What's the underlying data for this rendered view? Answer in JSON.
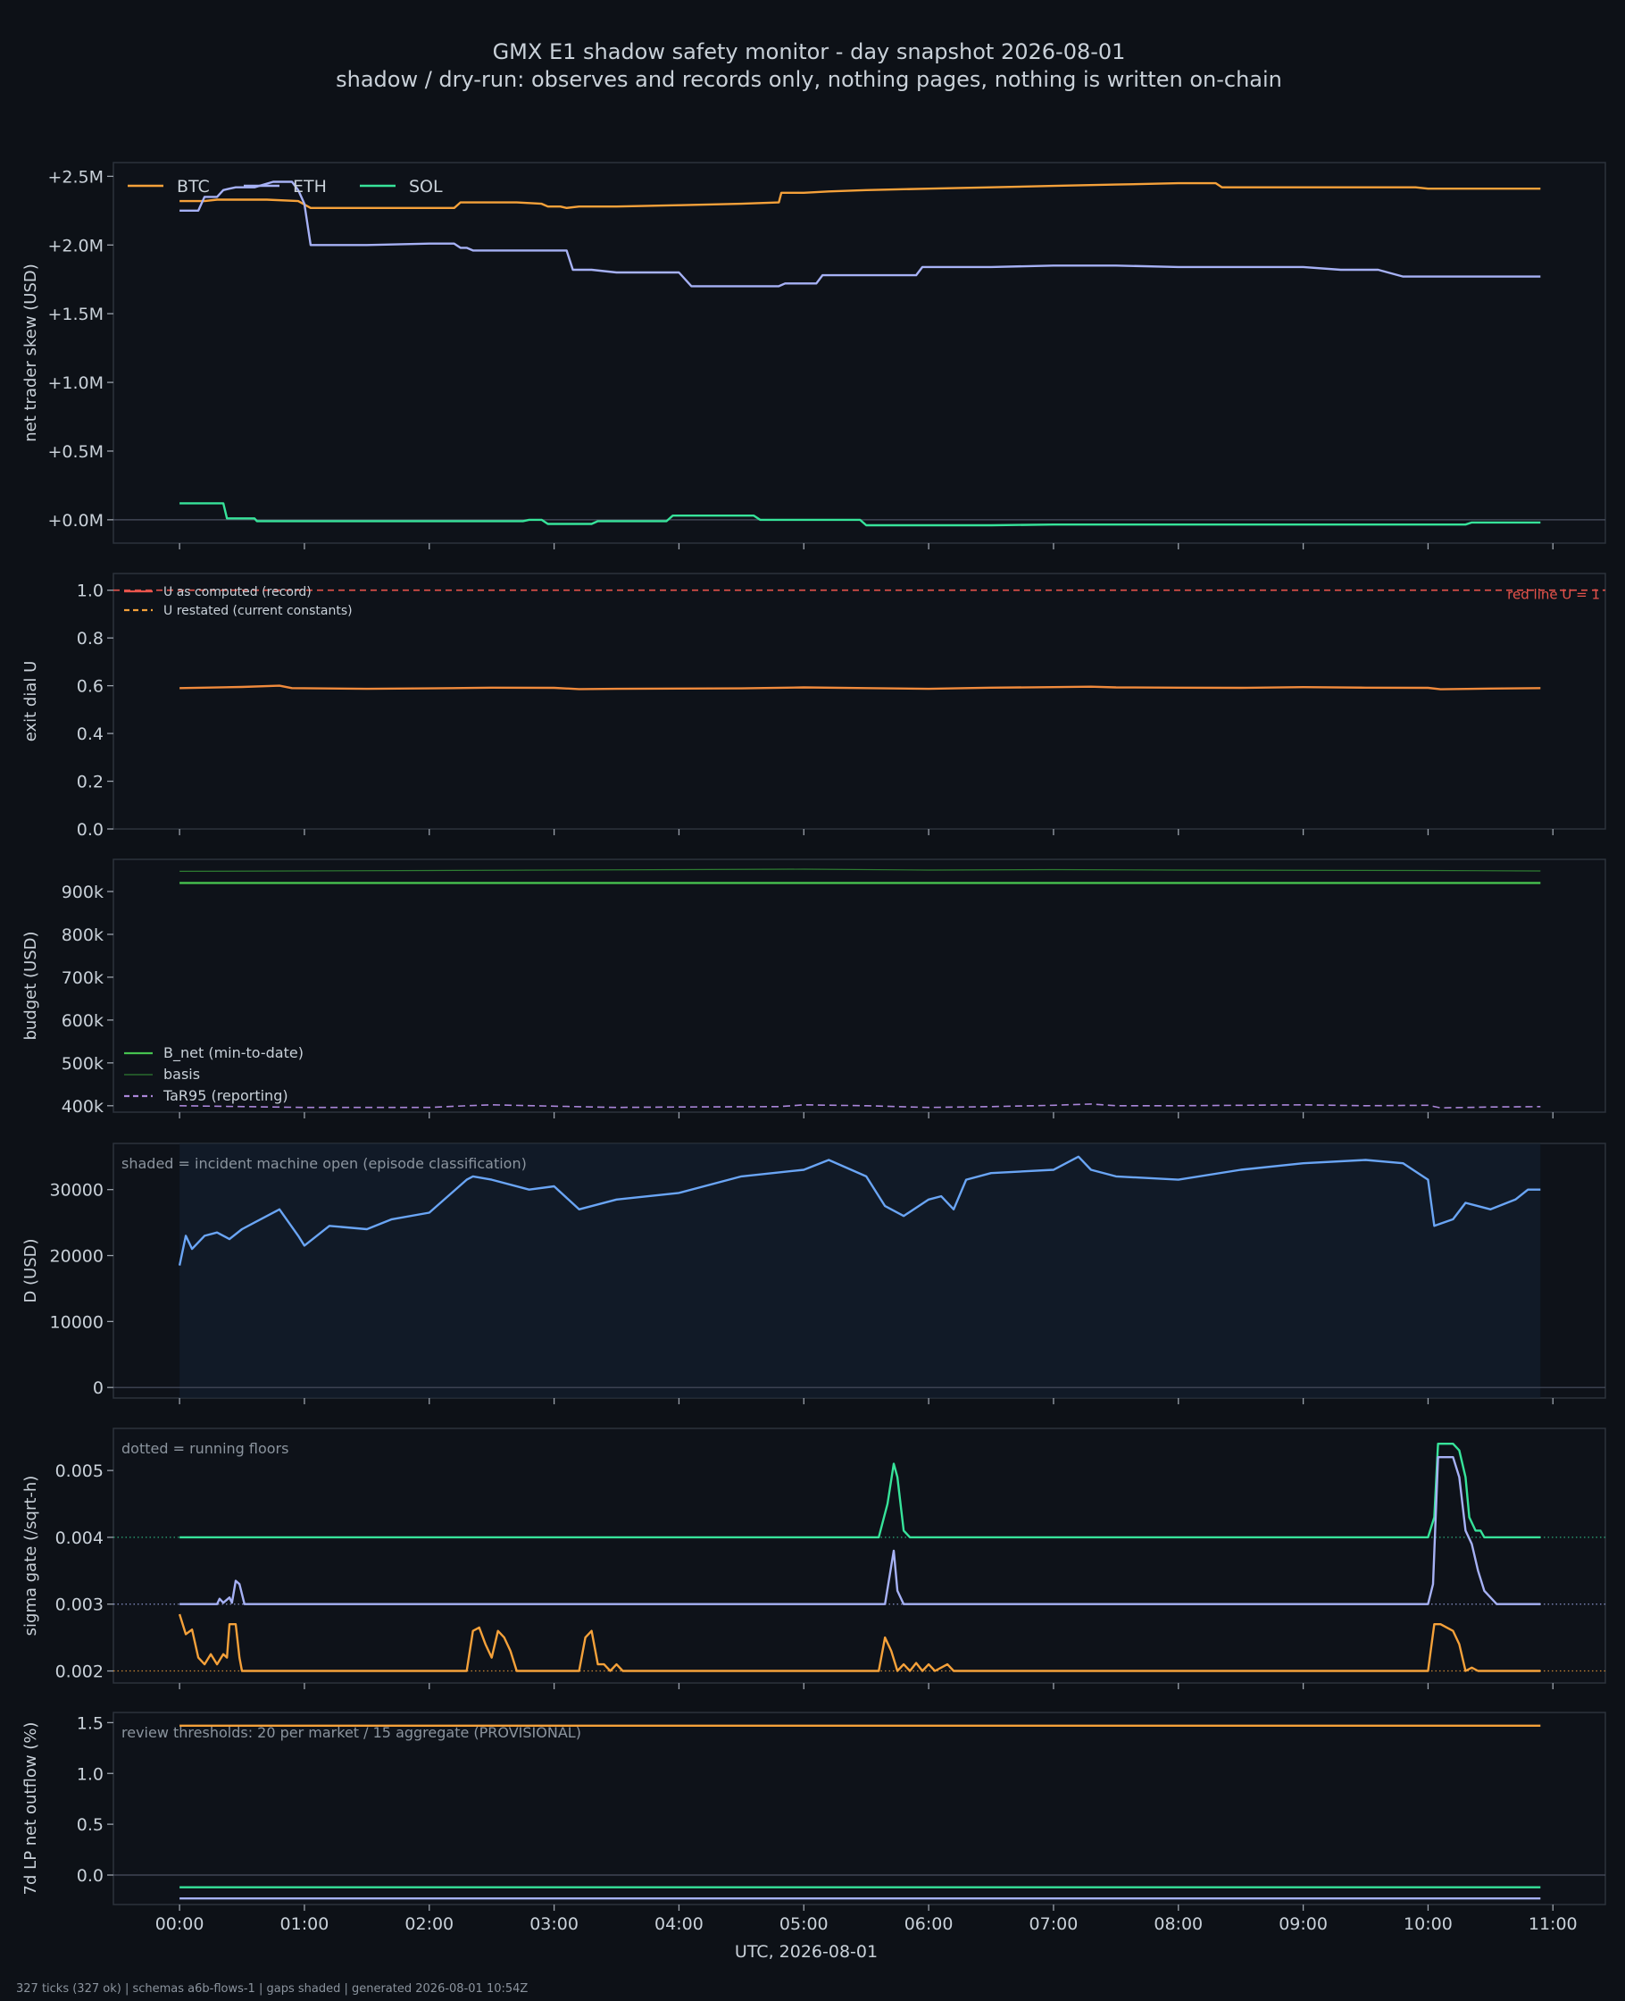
{
  "title": "GMX E1 shadow safety monitor - day snapshot 2026-08-01",
  "subtitle": "shadow / dry-run: observes and records only, nothing pages, nothing is written on-chain",
  "footer": "327 ticks (327 ok) | schemas a6b-flows-1 | gaps shaded | generated 2026-08-01 10:54Z",
  "xlabel": "UTC, 2026-08-01",
  "colors": {
    "background": "#0d1117",
    "panel": "#0e1219",
    "axis": "#2c323c",
    "text": "#c9d1d9",
    "muted": "#8b949e",
    "btc": "#f5a13a",
    "eth": "#a6b1f5",
    "sol": "#37e39a",
    "red": "#e5534b",
    "green": "#46c24f",
    "purple": "#a985d8",
    "blue": "#6aa5f5",
    "orange": "#f08a3c"
  },
  "chart_data": [
    {
      "id": "skew",
      "type": "line",
      "ylabel": "net trader skew (USD)",
      "ylim": [
        -0.17,
        2.6
      ],
      "yticks": [
        0,
        0.5,
        1.0,
        1.5,
        2.0,
        2.5
      ],
      "ytick_labels": [
        "+0.0M",
        "+0.5M",
        "+1.0M",
        "+1.5M",
        "+2.0M",
        "+2.5M"
      ],
      "zero_line": true,
      "legend": "top-left, horizontal",
      "series": [
        {
          "name": "BTC",
          "color": "btc",
          "legend": true,
          "x": [
            0,
            0.2,
            0.3,
            0.5,
            0.7,
            0.95,
            1.05,
            1.5,
            2.0,
            2.2,
            2.25,
            2.4,
            2.7,
            2.9,
            2.95,
            3.05,
            3.1,
            3.2,
            3.5,
            4.0,
            4.5,
            4.8,
            4.82,
            5.0,
            5.2,
            5.5,
            6.0,
            6.5,
            7.0,
            7.5,
            8.0,
            8.3,
            8.35,
            8.6,
            9.0,
            9.5,
            9.9,
            10.0,
            10.5,
            10.9
          ],
          "y": [
            2.32,
            2.32,
            2.33,
            2.33,
            2.33,
            2.32,
            2.27,
            2.27,
            2.27,
            2.27,
            2.31,
            2.31,
            2.31,
            2.3,
            2.28,
            2.28,
            2.27,
            2.28,
            2.28,
            2.29,
            2.3,
            2.31,
            2.38,
            2.38,
            2.39,
            2.4,
            2.41,
            2.42,
            2.43,
            2.44,
            2.45,
            2.45,
            2.42,
            2.42,
            2.42,
            2.42,
            2.42,
            2.41,
            2.41,
            2.41
          ]
        },
        {
          "name": "ETH",
          "color": "eth",
          "legend": true,
          "x": [
            0,
            0.15,
            0.2,
            0.3,
            0.35,
            0.4,
            0.45,
            0.5,
            0.6,
            0.75,
            0.9,
            0.95,
            1.0,
            1.05,
            1.3,
            1.5,
            2.0,
            2.2,
            2.25,
            2.3,
            2.35,
            2.4,
            2.7,
            3.0,
            3.1,
            3.15,
            3.3,
            3.4,
            3.5,
            3.8,
            4.0,
            4.1,
            4.5,
            4.8,
            4.85,
            5.1,
            5.15,
            5.5,
            5.9,
            5.95,
            6.5,
            7.0,
            7.5,
            8.0,
            8.5,
            8.9,
            9.0,
            9.3,
            9.6,
            9.8,
            10.0,
            10.5,
            10.9
          ],
          "y": [
            2.25,
            2.25,
            2.35,
            2.35,
            2.4,
            2.41,
            2.42,
            2.42,
            2.42,
            2.46,
            2.46,
            2.4,
            2.3,
            2.0,
            2.0,
            2.0,
            2.01,
            2.01,
            1.98,
            1.98,
            1.96,
            1.96,
            1.96,
            1.96,
            1.96,
            1.82,
            1.82,
            1.81,
            1.8,
            1.8,
            1.8,
            1.7,
            1.7,
            1.7,
            1.72,
            1.72,
            1.78,
            1.78,
            1.78,
            1.84,
            1.84,
            1.85,
            1.85,
            1.84,
            1.84,
            1.84,
            1.84,
            1.82,
            1.82,
            1.77,
            1.77,
            1.77,
            1.77
          ]
        },
        {
          "name": "SOL",
          "color": "sol",
          "legend": true,
          "x": [
            0,
            0.2,
            0.35,
            0.38,
            0.6,
            0.62,
            1.0,
            2.0,
            2.75,
            2.8,
            2.9,
            2.95,
            3.3,
            3.35,
            3.7,
            3.9,
            3.95,
            4.3,
            4.5,
            4.6,
            4.65,
            5.0,
            5.45,
            5.5,
            6.0,
            6.5,
            7.0,
            7.5,
            8.0,
            9.0,
            9.5,
            10.0,
            10.3,
            10.35,
            10.9
          ],
          "y": [
            0.12,
            0.12,
            0.12,
            0.01,
            0.01,
            -0.01,
            -0.01,
            -0.01,
            -0.01,
            0.0,
            0.0,
            -0.03,
            -0.03,
            -0.01,
            -0.01,
            -0.01,
            0.03,
            0.03,
            0.03,
            0.03,
            0.0,
            0.0,
            0.0,
            -0.04,
            -0.04,
            -0.04,
            -0.035,
            -0.035,
            -0.035,
            -0.035,
            -0.035,
            -0.035,
            -0.035,
            -0.02,
            -0.02
          ]
        }
      ]
    },
    {
      "id": "exit_dial",
      "type": "line",
      "ylabel": "exit dial U",
      "ylim": [
        0,
        1.07
      ],
      "yticks": [
        0,
        0.2,
        0.4,
        0.6,
        0.8,
        1.0
      ],
      "ytick_labels": [
        "0.0",
        "0.2",
        "0.4",
        "0.6",
        "0.8",
        "1.0"
      ],
      "legend": "top-left",
      "hline": {
        "y": 1.0,
        "color": "red",
        "dash": true,
        "label": "red line U = 1"
      },
      "series": [
        {
          "name": "U as computed (record)",
          "color": "red",
          "legend": true,
          "legend_only": true,
          "x": [
            0,
            10.9
          ],
          "y": [
            0.59,
            0.59
          ]
        },
        {
          "name": "U restated (current constants)",
          "color": "btc",
          "dash": true,
          "legend": true,
          "legend_only": true,
          "x": [
            0,
            10.9
          ],
          "y": [
            0.59,
            0.59
          ]
        },
        {
          "name": "U",
          "color": "orange",
          "legend": false,
          "x": [
            0,
            0.5,
            0.8,
            0.9,
            1.5,
            2.0,
            2.5,
            3.0,
            3.2,
            3.5,
            4.0,
            4.5,
            5.0,
            5.5,
            6.0,
            6.5,
            7.0,
            7.3,
            7.5,
            8.0,
            8.5,
            9.0,
            9.5,
            10.0,
            10.1,
            10.5,
            10.9
          ],
          "y": [
            0.59,
            0.595,
            0.6,
            0.59,
            0.587,
            0.589,
            0.592,
            0.591,
            0.586,
            0.587,
            0.588,
            0.589,
            0.593,
            0.59,
            0.587,
            0.592,
            0.594,
            0.596,
            0.593,
            0.592,
            0.591,
            0.594,
            0.592,
            0.591,
            0.585,
            0.588,
            0.59
          ]
        }
      ]
    },
    {
      "id": "budget",
      "type": "line",
      "ylabel": "budget (USD)",
      "ylim": [
        385000,
        975000
      ],
      "yticks": [
        400000,
        500000,
        600000,
        700000,
        800000,
        900000
      ],
      "ytick_labels": [
        "400k",
        "500k",
        "600k",
        "700k",
        "800k",
        "900k"
      ],
      "legend": "bottom-left",
      "series": [
        {
          "name": "B_net (min-to-date)",
          "color": "green",
          "legend": true,
          "x": [
            0,
            10.9
          ],
          "y": [
            920000,
            920000
          ]
        },
        {
          "name": "basis",
          "color": "#2e7d32",
          "legend": true,
          "thin": true,
          "x": [
            0,
            2,
            4,
            5,
            6,
            7,
            8,
            10,
            10.9
          ],
          "y": [
            947000,
            949000,
            951000,
            952000,
            950000,
            951000,
            950000,
            949000,
            948000
          ]
        },
        {
          "name": "TaR95 (reporting)",
          "color": "purple",
          "dash": true,
          "legend": true,
          "x": [
            0,
            1,
            2,
            2.3,
            2.5,
            3,
            3.5,
            4,
            4.8,
            5,
            5.5,
            6,
            6.5,
            7,
            7.3,
            7.5,
            8,
            8.5,
            9,
            9.5,
            10,
            10.1,
            10.5,
            10.9
          ],
          "y": [
            400000,
            396000,
            396000,
            400000,
            402000,
            399000,
            396000,
            397000,
            398000,
            402000,
            400000,
            396000,
            398000,
            401000,
            404000,
            400000,
            400000,
            401000,
            402000,
            400000,
            401000,
            395000,
            397000,
            398000
          ]
        }
      ]
    },
    {
      "id": "D",
      "type": "line",
      "ylabel": "D (USD)",
      "ylim": [
        -1600,
        37000
      ],
      "yticks": [
        0,
        10000,
        20000,
        30000
      ],
      "ytick_labels": [
        "0",
        "10000",
        "20000",
        "30000"
      ],
      "zero_line": true,
      "annotation": "shaded = incident machine open (episode classification)",
      "shaded_x": [
        0,
        10.9
      ],
      "series": [
        {
          "name": "D",
          "color": "blue",
          "legend": false,
          "x": [
            0,
            0.05,
            0.1,
            0.2,
            0.3,
            0.4,
            0.5,
            0.6,
            0.8,
            0.95,
            1.0,
            1.2,
            1.5,
            1.7,
            2.0,
            2.3,
            2.35,
            2.5,
            2.8,
            3.0,
            3.2,
            3.5,
            4.0,
            4.5,
            5.0,
            5.2,
            5.5,
            5.65,
            5.8,
            6.0,
            6.1,
            6.2,
            6.3,
            6.5,
            7.0,
            7.2,
            7.3,
            7.5,
            8.0,
            8.5,
            9.0,
            9.5,
            9.8,
            10.0,
            10.05,
            10.2,
            10.3,
            10.5,
            10.7,
            10.8,
            10.9
          ],
          "y": [
            18500,
            23000,
            21000,
            23000,
            23500,
            22500,
            24000,
            25000,
            27000,
            23000,
            21500,
            24500,
            24000,
            25500,
            26500,
            31500,
            32000,
            31500,
            30000,
            30500,
            27000,
            28500,
            29500,
            32000,
            33000,
            34500,
            32000,
            27500,
            26000,
            28500,
            29000,
            27000,
            31500,
            32500,
            33000,
            35000,
            33000,
            32000,
            31500,
            33000,
            34000,
            34500,
            34000,
            31500,
            24500,
            25500,
            28000,
            27000,
            28500,
            30000,
            30000
          ]
        }
      ]
    },
    {
      "id": "sigma",
      "type": "line",
      "ylabel": "sigma gate (/sqrt-h)",
      "ylim": [
        0.00182,
        0.00563
      ],
      "yticks": [
        0.002,
        0.003,
        0.004,
        0.005
      ],
      "ytick_labels": [
        "0.002",
        "0.003",
        "0.004",
        "0.005"
      ],
      "annotation": "dotted = running floors",
      "floors": [
        {
          "y": 0.002,
          "color": "btc"
        },
        {
          "y": 0.003,
          "color": "eth"
        },
        {
          "y": 0.004,
          "color": "sol"
        }
      ],
      "series": [
        {
          "name": "SOL",
          "color": "sol",
          "legend": false,
          "x": [
            0,
            5.6,
            5.67,
            5.72,
            5.75,
            5.8,
            5.85,
            10.0,
            10.05,
            10.08,
            10.2,
            10.25,
            10.3,
            10.33,
            10.38,
            10.42,
            10.45,
            10.9
          ],
          "y": [
            0.004,
            0.004,
            0.0045,
            0.0051,
            0.0049,
            0.0041,
            0.004,
            0.004,
            0.0043,
            0.0054,
            0.0054,
            0.0053,
            0.0049,
            0.0043,
            0.0041,
            0.0041,
            0.004,
            0.004
          ]
        },
        {
          "name": "ETH",
          "color": "eth",
          "legend": false,
          "x": [
            0,
            0.3,
            0.32,
            0.35,
            0.4,
            0.42,
            0.45,
            0.48,
            0.52,
            5.6,
            5.65,
            5.72,
            5.75,
            5.8,
            5.85,
            10.0,
            10.04,
            10.08,
            10.2,
            10.25,
            10.3,
            10.35,
            10.4,
            10.45,
            10.55,
            10.9
          ],
          "y": [
            0.003,
            0.003,
            0.00308,
            0.00302,
            0.0031,
            0.00302,
            0.00335,
            0.0033,
            0.003,
            0.003,
            0.003,
            0.0038,
            0.0032,
            0.003,
            0.003,
            0.003,
            0.0033,
            0.0052,
            0.0052,
            0.0049,
            0.0041,
            0.0039,
            0.0035,
            0.0032,
            0.003,
            0.003
          ]
        },
        {
          "name": "BTC",
          "color": "btc",
          "legend": false,
          "x": [
            0,
            0.05,
            0.1,
            0.15,
            0.2,
            0.25,
            0.3,
            0.35,
            0.38,
            0.4,
            0.45,
            0.48,
            0.5,
            0.55,
            2.3,
            2.35,
            2.4,
            2.45,
            2.5,
            2.55,
            2.6,
            2.65,
            2.7,
            2.75,
            2.8,
            2.95,
            3.2,
            3.25,
            3.3,
            3.35,
            3.4,
            3.45,
            3.5,
            3.55,
            5.6,
            5.65,
            5.7,
            5.75,
            5.8,
            5.85,
            5.9,
            5.95,
            6.0,
            6.05,
            6.1,
            6.15,
            6.2,
            10.0,
            10.05,
            10.1,
            10.2,
            10.25,
            10.3,
            10.35,
            10.4,
            10.45,
            10.9
          ],
          "y": [
            0.00285,
            0.00255,
            0.00262,
            0.0022,
            0.0021,
            0.00225,
            0.0021,
            0.00225,
            0.0022,
            0.0027,
            0.0027,
            0.0022,
            0.002,
            0.002,
            0.002,
            0.0026,
            0.00265,
            0.0024,
            0.0022,
            0.0026,
            0.0025,
            0.0023,
            0.002,
            0.002,
            0.002,
            0.002,
            0.002,
            0.0025,
            0.0026,
            0.0021,
            0.0021,
            0.002,
            0.0021,
            0.002,
            0.002,
            0.0025,
            0.0023,
            0.002,
            0.0021,
            0.002,
            0.00212,
            0.002,
            0.0021,
            0.002,
            0.00205,
            0.0021,
            0.002,
            0.002,
            0.0027,
            0.0027,
            0.0026,
            0.0024,
            0.002,
            0.00205,
            0.002,
            0.002,
            0.002
          ]
        }
      ]
    },
    {
      "id": "outflow",
      "type": "line",
      "ylabel": "7d LP net outflow (%)",
      "ylim": [
        -0.29,
        1.6
      ],
      "yticks": [
        0,
        0.5,
        1.0,
        1.5
      ],
      "ytick_labels": [
        "0.0",
        "0.5",
        "1.0",
        "1.5"
      ],
      "zero_line": true,
      "annotation": "review thresholds: 20 per market / 15 aggregate (PROVISIONAL)",
      "series": [
        {
          "name": "BTC",
          "color": "btc",
          "legend": false,
          "x": [
            0,
            10.9
          ],
          "y": [
            1.47,
            1.47
          ]
        },
        {
          "name": "SOL",
          "color": "sol",
          "legend": false,
          "x": [
            0,
            10.9
          ],
          "y": [
            -0.12,
            -0.12
          ]
        },
        {
          "name": "ETH",
          "color": "eth",
          "legend": false,
          "x": [
            0,
            10.9
          ],
          "y": [
            -0.23,
            -0.23
          ]
        }
      ]
    }
  ],
  "xaxis": {
    "xlim": [
      -0.53,
      11.42
    ],
    "ticks": [
      0,
      1,
      2,
      3,
      4,
      5,
      6,
      7,
      8,
      9,
      10,
      11
    ],
    "tick_labels": [
      "00:00",
      "01:00",
      "02:00",
      "03:00",
      "04:00",
      "05:00",
      "06:00",
      "07:00",
      "08:00",
      "09:00",
      "10:00",
      "11:00"
    ]
  }
}
